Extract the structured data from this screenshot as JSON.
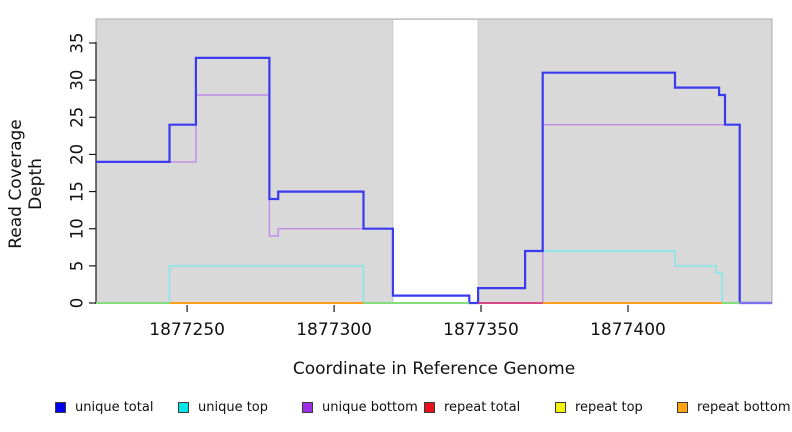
{
  "chart_data": {
    "type": "line",
    "subtype": "step-coverage",
    "title": "",
    "xlabel": "Coordinate in Reference Genome",
    "ylabel": "Read Coverage Depth",
    "xlim": [
      1877219,
      1877449
    ],
    "ylim": [
      0,
      38
    ],
    "x_ticks": [
      1877250,
      1877300,
      1877350,
      1877400
    ],
    "y_ticks": [
      0,
      5,
      10,
      15,
      20,
      25,
      30,
      35
    ],
    "grid": false,
    "legend_position": "bottom",
    "plot_bg_color": "#d9d9d9",
    "plot_bg_border_color": "#acacac",
    "shaded_regions": [
      [
        1877219,
        1877320
      ],
      [
        1877349,
        1877449
      ]
    ],
    "gap_regions": [
      [
        1877320,
        1877349
      ]
    ],
    "series": [
      {
        "name": "unique total",
        "swatch_color": "#0202ee",
        "line_color": "#3a3aef",
        "line_width": 2.2,
        "steps": [
          [
            1877219,
            19
          ],
          [
            1877244,
            24
          ],
          [
            1877253,
            33
          ],
          [
            1877278,
            14
          ],
          [
            1877281,
            15
          ],
          [
            1877310,
            10
          ],
          [
            1877320,
            1
          ],
          [
            1877346,
            0
          ],
          [
            1877349,
            2
          ],
          [
            1877365,
            7
          ],
          [
            1877371,
            31
          ],
          [
            1877416,
            29
          ],
          [
            1877431,
            28
          ],
          [
            1877433,
            24
          ],
          [
            1877438,
            0
          ],
          [
            1877449,
            0
          ]
        ]
      },
      {
        "name": "unique top",
        "swatch_color": "#00e5e5",
        "line_color": "#7ce9ec",
        "line_width": 1.4,
        "steps": [
          [
            1877219,
            0
          ],
          [
            1877244,
            5
          ],
          [
            1877310,
            0
          ],
          [
            1877349,
            2
          ],
          [
            1877365,
            7
          ],
          [
            1877416,
            5
          ],
          [
            1877430,
            4
          ],
          [
            1877432,
            0
          ],
          [
            1877449,
            0
          ]
        ]
      },
      {
        "name": "unique bottom",
        "swatch_color": "#9d2fe8",
        "line_color": "#c08ce8",
        "line_width": 1.4,
        "steps": [
          [
            1877219,
            19
          ],
          [
            1877253,
            28
          ],
          [
            1877278,
            9
          ],
          [
            1877281,
            10
          ],
          [
            1877320,
            1
          ],
          [
            1877346,
            0
          ],
          [
            1877371,
            24
          ],
          [
            1877438,
            0
          ],
          [
            1877449,
            0
          ]
        ]
      },
      {
        "name": "repeat total",
        "swatch_color": "#e8101c",
        "line_color": "#e8101c",
        "line_width": 1.4,
        "steps": [
          [
            1877219,
            0
          ],
          [
            1877449,
            0
          ]
        ]
      },
      {
        "name": "repeat top",
        "swatch_color": "#f2f20c",
        "line_color": "#f2f20c",
        "line_width": 1.4,
        "steps": [
          [
            1877219,
            0
          ],
          [
            1877449,
            0
          ]
        ]
      },
      {
        "name": "repeat bottom",
        "swatch_color": "#ffa50f",
        "line_color": "#ff9d1e",
        "line_width": 1.8,
        "steps": [
          [
            1877219,
            0
          ],
          [
            1877449,
            0
          ]
        ]
      }
    ],
    "draw_order": [
      3,
      4,
      5,
      2,
      1,
      0
    ],
    "baseline_overlap_segments": [
      {
        "from": 1877219,
        "to": 1877244,
        "color": "#7fe07f"
      },
      {
        "from": 1877244,
        "to": 1877310,
        "color": "#ff9d1e"
      },
      {
        "from": 1877310,
        "to": 1877346,
        "color": "#7fe07f"
      },
      {
        "from": 1877349,
        "to": 1877371,
        "color": "#d23c86"
      },
      {
        "from": 1877371,
        "to": 1877432,
        "color": "#ff9d1e"
      },
      {
        "from": 1877432,
        "to": 1877438,
        "color": "#7fe07f"
      },
      {
        "from": 1877438,
        "to": 1877449,
        "color": "#8678ea"
      }
    ]
  },
  "legend": {
    "items": [
      {
        "label": "unique total",
        "color": "#0202ee"
      },
      {
        "label": "unique top",
        "color": "#00e5e5"
      },
      {
        "label": "unique bottom",
        "color": "#9d2fe8"
      },
      {
        "label": "repeat total",
        "color": "#e8101c"
      },
      {
        "label": "repeat top",
        "color": "#f2f20c"
      },
      {
        "label": "repeat bottom",
        "color": "#ffa50f"
      }
    ]
  }
}
